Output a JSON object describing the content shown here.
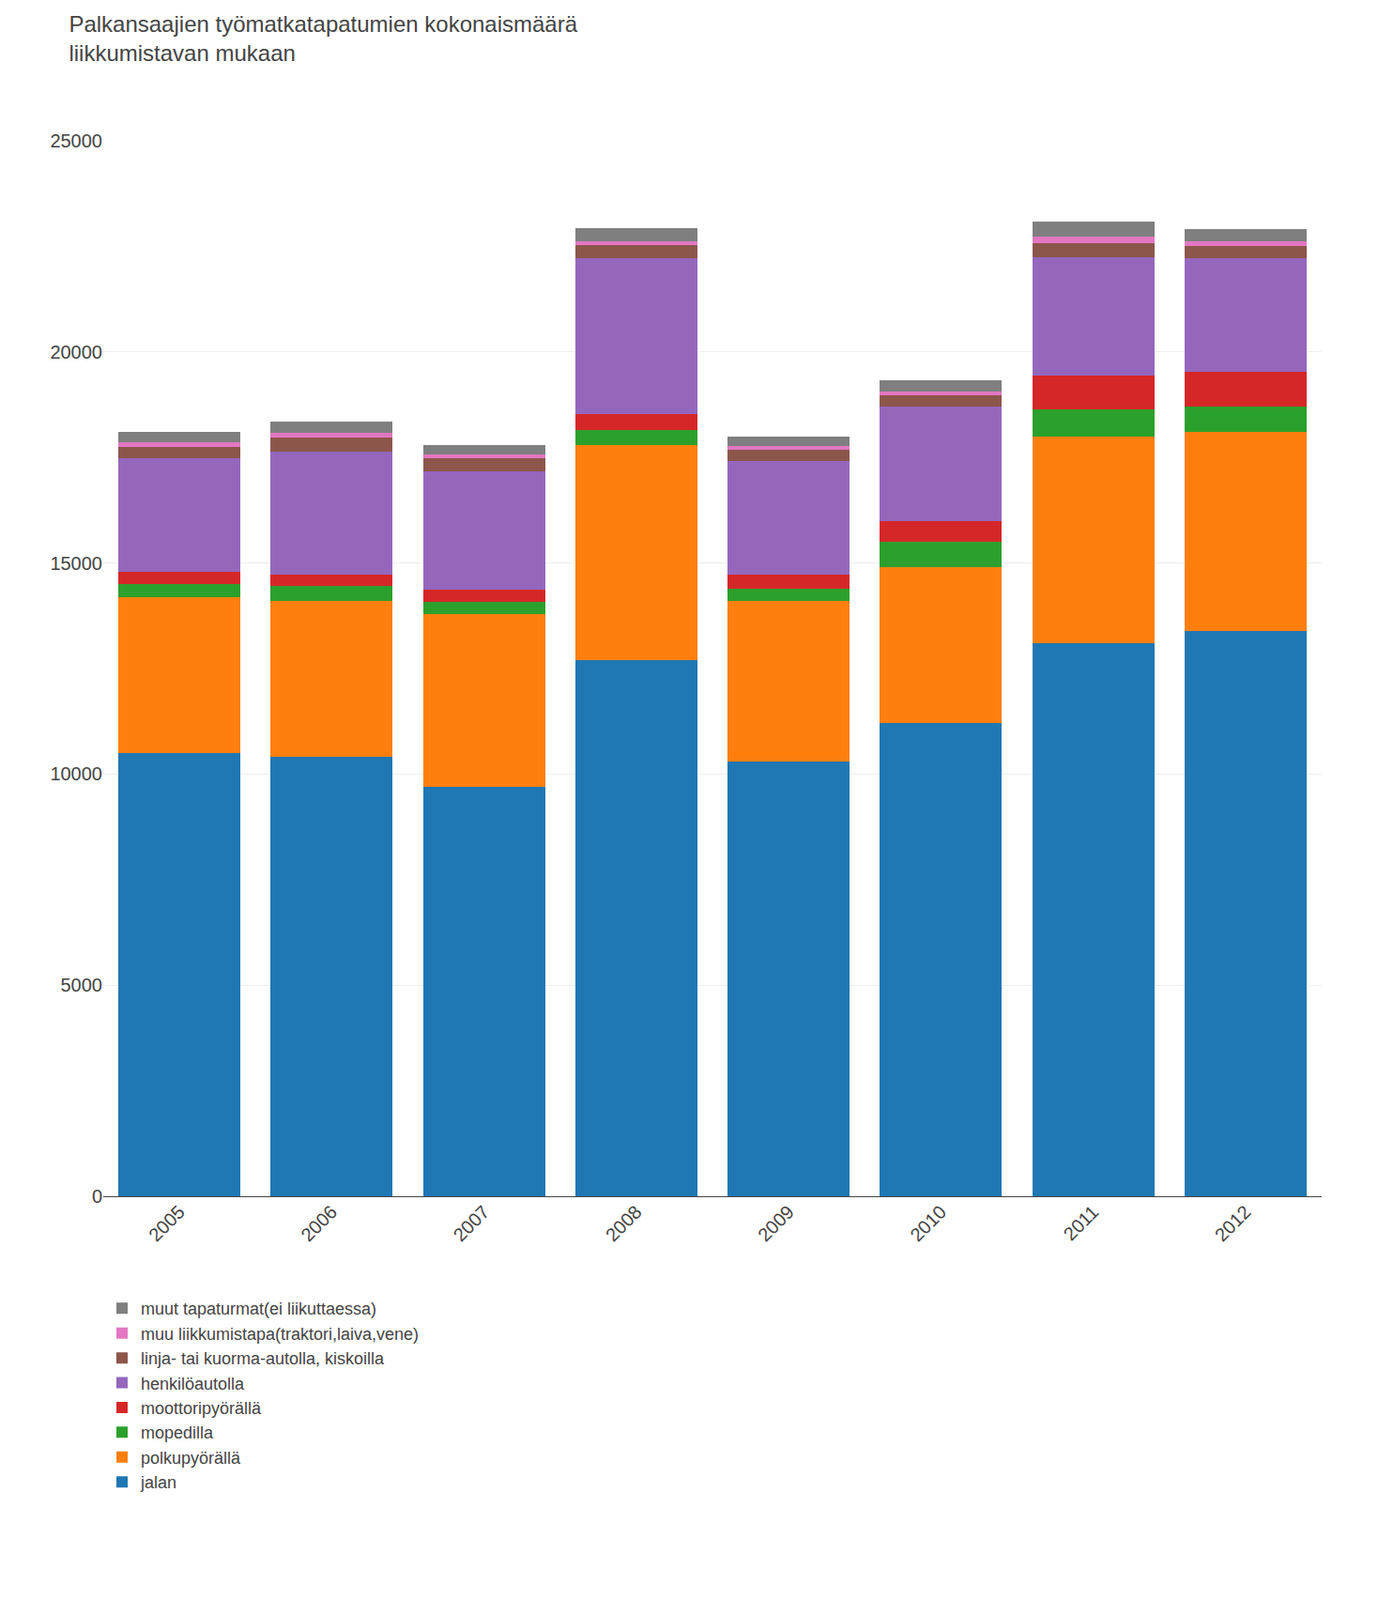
{
  "chart_data": {
    "type": "bar",
    "title": "Palkansaajien työmatkatapatumien kokonaismäärä",
    "subtitle": "liikkumistavan mukaan",
    "categories": [
      "2005",
      "2006",
      "2007",
      "2008",
      "2009",
      "2010",
      "2011",
      "2012"
    ],
    "series": [
      {
        "name": "jalan",
        "values": [
          10500,
          10400,
          9700,
          12700,
          10300,
          11200,
          13100,
          13400
        ]
      },
      {
        "name": "polkupyörällä",
        "values": [
          3700,
          3700,
          4100,
          5100,
          3800,
          3700,
          4900,
          4700
        ]
      },
      {
        "name": "mopedilla",
        "values": [
          300,
          350,
          280,
          350,
          300,
          600,
          650,
          600
        ]
      },
      {
        "name": "moottoripyörällä",
        "values": [
          280,
          280,
          280,
          380,
          320,
          500,
          800,
          820
        ]
      },
      {
        "name": "henkilöautolla",
        "values": [
          2700,
          2900,
          2800,
          3700,
          2700,
          2700,
          2800,
          2700
        ]
      },
      {
        "name": "linja- tai kuorma-autolla, kiskoilla",
        "values": [
          280,
          350,
          330,
          300,
          270,
          280,
          330,
          300
        ]
      },
      {
        "name": "muu liikkumistapa(traktori,laiva,vene)",
        "values": [
          100,
          100,
          80,
          100,
          80,
          80,
          150,
          100
        ]
      },
      {
        "name": "muut tapaturmat(ei liikuttaessa)",
        "values": [
          250,
          280,
          220,
          300,
          230,
          260,
          350,
          300
        ]
      }
    ],
    "stacked": true,
    "ylim": [
      0,
      25000
    ],
    "yticks": [
      0,
      5000,
      10000,
      15000,
      20000,
      25000
    ],
    "grid": true,
    "legend": "bottom"
  }
}
